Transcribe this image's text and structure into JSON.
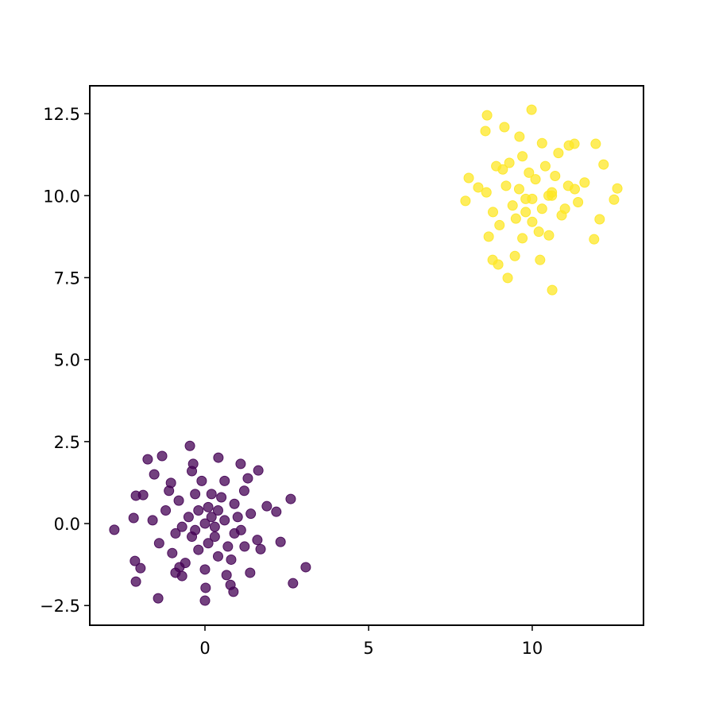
{
  "chart_data": {
    "type": "scatter",
    "xlim": [
      -3.52,
      13.4
    ],
    "ylim": [
      -3.1,
      13.35
    ],
    "xticks": [
      0,
      5,
      10
    ],
    "yticks": [
      {
        "value": -2.5,
        "label": "−2.5"
      },
      {
        "value": 0,
        "label": "0.0"
      },
      {
        "value": 2.5,
        "label": "2.5"
      },
      {
        "value": 5,
        "label": "5.0"
      },
      {
        "value": 7.5,
        "label": "7.5"
      },
      {
        "value": 10,
        "label": "10.0"
      },
      {
        "value": 12.5,
        "label": "12.5"
      }
    ],
    "series": [
      {
        "color": "#440154",
        "x": [
          -2.77,
          -1.75,
          -1.31,
          -0.46,
          -0.36,
          0.41,
          1.09,
          1.63,
          -2.11,
          -1.89,
          -2.18,
          -2.14,
          -1.97,
          -2.11,
          -1.43,
          0.02,
          0.0,
          0.78,
          0.87,
          2.31,
          3.08,
          2.69,
          2.62,
          2.18,
          1.89,
          1.31,
          -0.78,
          -0.7,
          0.66,
          1.38,
          1.21,
          1.7,
          -1.55,
          -1.04,
          -0.5,
          0.3,
          0.1,
          -0.2,
          0.6,
          -0.9,
          0.9,
          -0.3,
          0.4,
          -1.2,
          1.1,
          0.0,
          -0.6,
          0.7,
          -0.1,
          1.4,
          -1.4,
          0.2,
          -0.4,
          0.5,
          -0.8,
          0.8,
          -1.0,
          1.2,
          -0.2,
          0.3,
          -0.7,
          0.1,
          -1.6,
          1.6,
          0.6,
          -0.4,
          0.9,
          -1.1,
          0.0,
          1.0,
          -0.9,
          0.4,
          -0.3,
          0.2
        ],
        "values": [
          -0.19,
          1.96,
          2.06,
          2.37,
          1.82,
          2.01,
          1.82,
          1.62,
          0.85,
          0.87,
          0.17,
          -1.14,
          -1.36,
          -1.77,
          -2.28,
          -1.96,
          -2.35,
          -1.87,
          -2.08,
          -0.56,
          -1.33,
          -1.82,
          0.75,
          0.36,
          0.53,
          1.38,
          -1.33,
          -1.6,
          -1.57,
          -1.5,
          -0.7,
          -0.78,
          1.5,
          1.24,
          0.2,
          -0.4,
          0.5,
          -0.8,
          0.1,
          -0.3,
          0.6,
          0.9,
          -1.0,
          0.4,
          -0.2,
          0.0,
          -1.2,
          -0.7,
          1.3,
          0.3,
          -0.6,
          0.2,
          -0.4,
          0.8,
          0.7,
          -1.1,
          -0.9,
          1.0,
          0.4,
          -0.1,
          -0.1,
          -0.6,
          0.1,
          -0.5,
          1.3,
          1.6,
          -0.3,
          1.0,
          -1.4,
          0.2,
          -1.5,
          0.4,
          -0.2,
          0.9
        ]
      },
      {
        "color": "#fde725",
        "x": [
          8.62,
          9.98,
          9.15,
          8.57,
          11.29,
          11.94,
          12.18,
          12.6,
          12.5,
          12.06,
          11.89,
          10.61,
          9.25,
          8.96,
          8.79,
          8.67,
          7.96,
          8.06,
          9.47,
          10.24,
          10.51,
          11.12,
          9.61,
          8.35,
          9.6,
          10.3,
          10.1,
          9.8,
          10.6,
          9.1,
          10.9,
          9.7,
          10.4,
          8.8,
          11.1,
          10.0,
          9.4,
          10.7,
          9.3,
          11.4,
          8.6,
          10.2,
          9.9,
          10.8,
          9.5,
          11.6,
          9.0,
          10.5,
          9.7,
          10.3,
          11.0,
          9.2,
          10.0,
          8.9,
          11.3,
          9.8,
          10.6
        ],
        "values": [
          12.45,
          12.62,
          12.09,
          11.97,
          11.58,
          11.58,
          10.95,
          10.22,
          9.88,
          9.28,
          8.67,
          7.12,
          7.49,
          7.9,
          8.04,
          8.75,
          9.84,
          10.54,
          8.16,
          8.04,
          8.79,
          11.53,
          11.8,
          10.25,
          10.2,
          9.6,
          10.5,
          9.9,
          10.0,
          10.8,
          9.4,
          11.2,
          10.9,
          9.5,
          10.3,
          9.2,
          9.7,
          10.6,
          11.0,
          9.8,
          10.1,
          8.9,
          10.7,
          11.3,
          9.3,
          10.4,
          9.1,
          10.0,
          8.7,
          11.6,
          9.6,
          10.3,
          9.9,
          10.9,
          10.2,
          9.5,
          10.1
        ]
      }
    ]
  }
}
